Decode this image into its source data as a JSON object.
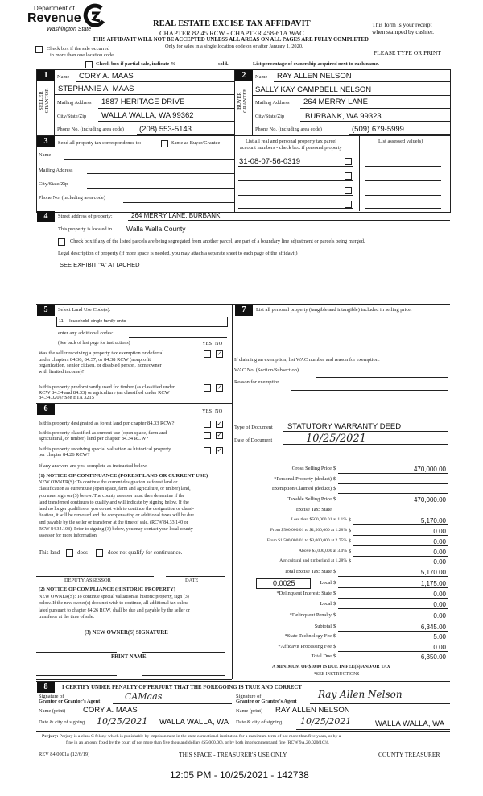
{
  "logo": {
    "line1": "Department of",
    "line2": "Revenue",
    "line3": "Washington State"
  },
  "header": {
    "title": "REAL ESTATE EXCISE TAX AFFIDAVIT",
    "subtitle": "CHAPTER 82.45 RCW - CHAPTER 458-61A WAC",
    "warning": "THIS AFFIDAVIT WILL NOT BE ACCEPTED UNLESS ALL AREAS ON ALL PAGES ARE FULLY COMPLETED",
    "note": "Only for sales in a single location code on or after January 1, 2020.",
    "receipt1": "This form is your receipt",
    "receipt2": "when stamped by cashier.",
    "please": "PLEASE TYPE OR PRINT",
    "multi_location1": "Check box if the sale occurred",
    "multi_location2": "in more than one location code.",
    "partial_sale": "Check box if partial sale, indicate %",
    "sold": "sold.",
    "ownership": "List percentage of ownership acquired next to each name."
  },
  "seller": {
    "number": "1",
    "side_label1": "SELLER",
    "side_label2": "GRANTOR",
    "name_label": "Name",
    "name1": "CORY A. MAAS",
    "name2": "STEPHANIE A. MAAS",
    "mailing_label": "Mailing Address",
    "mailing": "1887 HERITAGE DRIVE",
    "city_label": "City/State/Zip",
    "city": "WALLA WALLA, WA 99362",
    "phone_label": "Phone No. (including area code)",
    "phone": "(208) 553-5143"
  },
  "buyer": {
    "number": "2",
    "side_label1": "BUYER",
    "side_label2": "GRANTEE",
    "name_label": "Name",
    "name1": "RAY ALLEN NELSON",
    "name2": "SALLY KAY CAMPBELL NELSON",
    "mailing_label": "Mailing Address",
    "mailing": "264 MERRY LANE",
    "city_label": "City/State/Zip",
    "city": "BURBANK, WA 99323",
    "phone_label": "Phone No. (including area code)",
    "phone": "(509) 679-5999"
  },
  "section3": {
    "number": "3",
    "send_label": "Send all property tax correspondence to:",
    "same_label": "Same as Buyer/Grantee",
    "name_label": "Name",
    "mailing_label": "Mailing Address",
    "city_label": "City/State/Zip",
    "phone_label": "Phone No. (including area code)",
    "parcel_header1": "List all real and personal property tax parcel",
    "parcel_header2": "account numbers - check box if personal property",
    "assessed_header": "List assessed value(s)",
    "parcels": [
      "31-08-07-56-0319",
      "",
      "",
      ""
    ]
  },
  "section4": {
    "number": "4",
    "street_label": "Street address of property:",
    "street": "264 MERRY LANE, BURBANK",
    "located_label": "This property is located in",
    "located": "Walla Walla County",
    "segregated": "Check box if any of the listed parcels are being segregated from another parcel, are part of a boundary line adjustment or parcels being merged.",
    "legal_label": "Legal description of property (if more space is needed, you may attach a separate sheet to each page of the affidavit)",
    "legal": "SEE EXHIBIT \"A\" ATTACHED"
  },
  "section5": {
    "number": "5",
    "select_label": "Select Land Use Code(s):",
    "land_use": "11 - Household, single family units",
    "additional_label": "enter any additional codes:",
    "see_back": "(See back of last page for instructions)",
    "yes": "YES",
    "no": "NO",
    "q1": [
      "Was the seller receiving a property tax exemption or deferral",
      "under chapters 84.36, 84.37, or 84.38 RCW (nonprofit",
      "organization, senior citizen, or disabled person, homeowner",
      "with limited income)?"
    ],
    "q1_answer": "NO",
    "q2": [
      "Is this property predominantly used for timber (as classified under",
      "RCW 84.34 and 84.33) or agriculture (as classified under RCW",
      "84.34.020)? See ETA 3215"
    ],
    "q2_answer": "NO"
  },
  "section6": {
    "number": "6",
    "yes": "YES",
    "no": "NO",
    "q1": "Is this property designated as forest land per chapter 84.33 RCW?",
    "q2": [
      "Is this property classified as current use (open space, farm and",
      "agricultural, or timber) land per chapter 84.34 RCW?"
    ],
    "q3": [
      "Is this property receiving special valuation as historical property",
      "per chapter 84.26 RCW?"
    ],
    "answers": [
      "NO",
      "NO",
      "NO"
    ],
    "if_yes": "If any answers are yes, complete as instructed below.",
    "notice1_title": "(1) NOTICE OF CONTINUANCE (FOREST LAND OR CURRENT USE)",
    "notice1_text": [
      "NEW OWNER(S): To continue the current designation as forest land or",
      "classification as current use (open space, farm and agriculture, or timber) land,",
      "you must sign on (3) below. The county assessor must then determine if the",
      "land transferred continues to qualify and will indicate by signing below. If the",
      "land no longer qualifies or you do not wish to continue the designation or classi-",
      "fication, it will be removed and the compensating or additional taxes will be due",
      "and payable by the seller or transferor at the time of sale. (RCW 84.33.140 or",
      "RCW 84.34.108). Prior to signing (3) below, you may contact your local county",
      "assessor for more information."
    ],
    "this_land": "This land",
    "does": "does",
    "does_not": "does not qualify for continuance.",
    "deputy": "DEPUTY ASSESSOR",
    "date": "DATE",
    "notice2_title": "(2) NOTICE OF COMPLIANCE (HISTORIC PROPERTY)",
    "notice2_text": [
      "NEW OWNER(S): To continue special valuation as historic property, sign (3)",
      "below. If the new owner(s) does not wish to continue, all additional tax calcu-",
      "lated pursuant to chapter 84.26 RCW, shall be due and payable by the seller or",
      "transferor at the time of sale."
    ],
    "signature_title": "(3) NEW OWNER(S) SIGNATURE",
    "print_name": "PRINT NAME"
  },
  "section7": {
    "number": "7",
    "personal_label": "List all personal property (tangible and intangible) included in selling price.",
    "exemption_label": "If claiming an exemption, list WAC number and reason for exemption:",
    "wac_label": "WAC No. (Section/Subsection)",
    "reason_label": "Reason for exemption",
    "doc_type_label": "Type of Document",
    "doc_type": "STATUTORY WARRANTY DEED",
    "doc_date_label": "Date of Document",
    "doc_date": "10/25/2021",
    "local_rate": "0.0025",
    "tax_rows": [
      {
        "label": "Gross Selling Price",
        "value": "470,000.00"
      },
      {
        "label": "*Personal Property (deduct)",
        "value": ""
      },
      {
        "label": "Exemption Claimed (deduct)",
        "value": ""
      },
      {
        "label": "Taxable Selling Price",
        "value": "470,000.00"
      },
      {
        "label": "Excise Tax: State",
        "value": null
      },
      {
        "label": "Less than $500,000.01 at 1.1%",
        "value": "5,170.00"
      },
      {
        "label": "From $500,000.01 to $1,500,000 at 1.28%",
        "value": "0.00"
      },
      {
        "label": "From $1,500,000.01 to $3,000,000 at 2.75%",
        "value": "0.00"
      },
      {
        "label": "Above $3,000,000 at 3.0%",
        "value": "0.00"
      },
      {
        "label": "Agricultural and timberland at 1.28%",
        "value": "0.00"
      },
      {
        "label": "Total Excise Tax: State",
        "value": "5,170.00"
      },
      {
        "label": "Local",
        "value": "1,175.00"
      },
      {
        "label": "*Delinquent Interest: State",
        "value": "0.00"
      },
      {
        "label": "Local",
        "value": "0.00"
      },
      {
        "label": "*Delinquent Penalty",
        "value": "0.00"
      },
      {
        "label": "Subtotal",
        "value": "6,345.00"
      },
      {
        "label": "*State Technology Fee",
        "value": "5.00"
      },
      {
        "label": "*Affidavit Processing Fee",
        "value": "0.00"
      },
      {
        "label": "Total Due",
        "value": "6,350.00"
      }
    ],
    "currency": "$",
    "minimum": "A MINIMUM OF $10.00 IS DUE IN FEE(S) AND/OR TAX",
    "see_instructions": "*SEE INSTRUCTIONS"
  },
  "section8": {
    "number": "8",
    "certify": "I CERTIFY UNDER PENALTY OF PERJURY THAT THE FOREGOING IS TRUE AND CORRECT",
    "grantor_sig_label1": "Signature of",
    "grantor_sig_label2": "Grantor or Grantor's Agent",
    "grantee_sig_label1": "Signature of",
    "grantee_sig_label2": "Grantee or Grantee's Agent",
    "grantor_signature": "CAMaas",
    "grantee_signature": "Ray Allen Nelson",
    "name_label": "Name (print)",
    "grantor_name": "CORY A. MAAS",
    "grantee_name": "RAY ALLEN NELSON",
    "date_label": "Date & city of signing",
    "grantor_date": "10/25/2021",
    "grantor_city": "WALLA WALLA, WA",
    "grantee_date": "10/25/2021",
    "grantee_city": "WALLA WALLA, WA",
    "perjury_bold": "Perjury:",
    "perjury1": "Perjury is a class C felony which is punishable by imprisonment in the state correctional institution for a maximum term of not more than five years, or by a",
    "perjury2": "fine in an amount fixed by the court of not more than five thousand dollars ($5,000.00), or by both imprisonment and fine (RCW 9A.20.020(1C))."
  },
  "footer": {
    "rev": "REV 84 0001a (12/6/19)",
    "treasurer_space": "THIS SPACE - TREASURER'S USE ONLY",
    "county_treasurer": "COUNTY TREASURER",
    "timestamp": "12:05 PM - 10/25/2021 - 142738"
  }
}
